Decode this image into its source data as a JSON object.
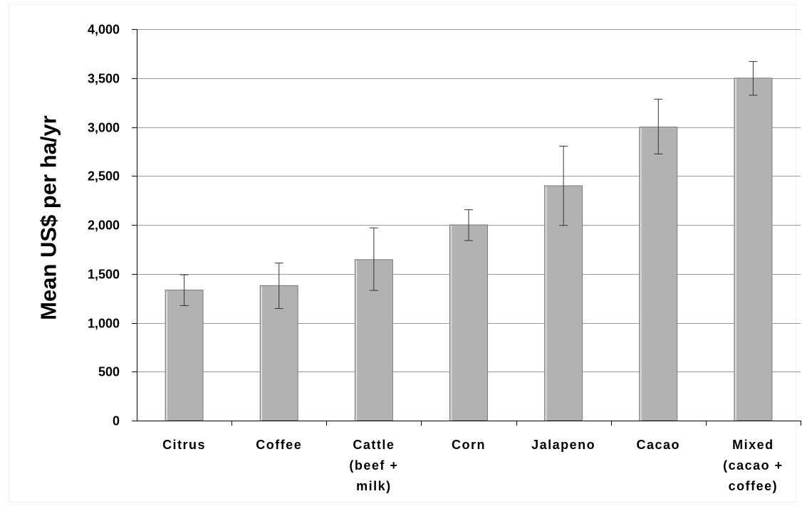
{
  "chart_data": {
    "type": "bar",
    "title": "",
    "xlabel": "",
    "ylabel": "Mean US$ per ha/yr",
    "ylim": [
      0,
      4000
    ],
    "yticks": [
      0,
      500,
      1000,
      1500,
      2000,
      2500,
      3000,
      3500,
      4000
    ],
    "ytick_labels": [
      "0",
      "500",
      "1,000",
      "1,500",
      "2,000",
      "2,500",
      "3,000",
      "3,500",
      "4,000"
    ],
    "grid": true,
    "legend": "none",
    "bar_color": "#b2b2b2",
    "categories": [
      [
        "Citrus"
      ],
      [
        "Coffee"
      ],
      [
        "Cattle",
        "(beef +",
        "milk)"
      ],
      [
        "Corn"
      ],
      [
        "Jalapeno"
      ],
      [
        "Cacao"
      ],
      [
        "Mixed",
        "(cacao +",
        "coffee)"
      ]
    ],
    "values": [
      1335,
      1380,
      1645,
      2000,
      2400,
      3000,
      3500
    ],
    "error_low": [
      1175,
      1145,
      1330,
      1840,
      1995,
      2725,
      3325
    ],
    "error_high": [
      1490,
      1610,
      1970,
      2155,
      2805,
      3285,
      3670
    ]
  }
}
